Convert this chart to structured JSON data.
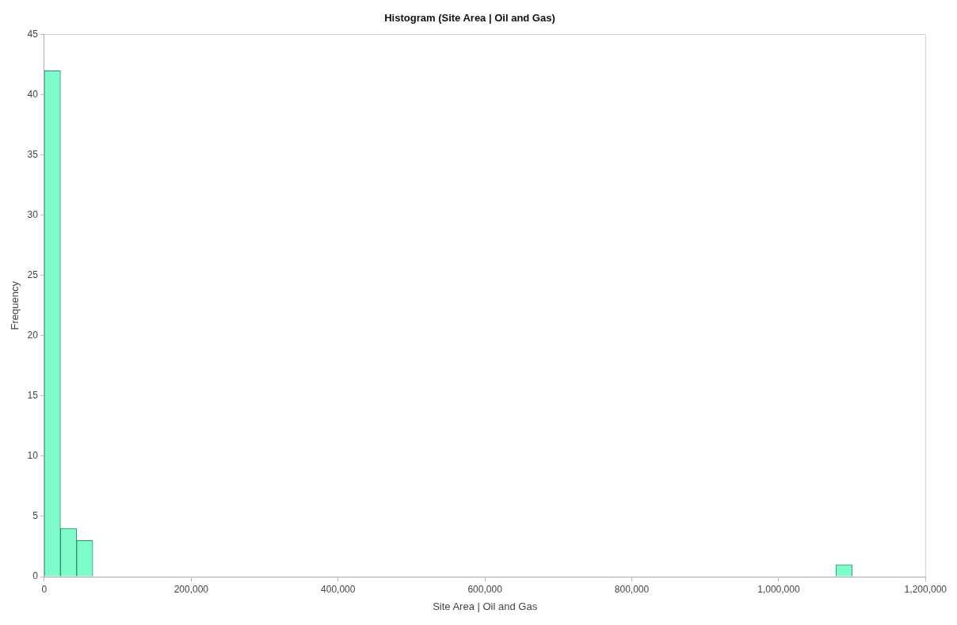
{
  "chart_data": {
    "type": "histogram",
    "title": "Histogram (Site Area | Oil and Gas)",
    "xlabel": "Site Area | Oil and Gas",
    "ylabel": "Frequency",
    "bins": [
      0,
      22000,
      44000,
      66000,
      88000,
      110000,
      132000,
      154000,
      176000,
      198000,
      220000,
      242000,
      264000,
      286000,
      308000,
      330000,
      352000,
      374000,
      396000,
      418000,
      440000,
      462000,
      484000,
      506000,
      528000,
      550000,
      572000,
      594000,
      616000,
      638000,
      660000,
      682000,
      704000,
      726000,
      748000,
      770000,
      792000,
      814000,
      836000,
      858000,
      880000,
      902000,
      924000,
      946000,
      968000,
      990000,
      1012000,
      1034000,
      1056000,
      1078000,
      1100000
    ],
    "values": [
      42,
      4,
      3,
      0,
      0,
      0,
      0,
      0,
      0,
      0,
      0,
      0,
      0,
      0,
      0,
      0,
      0,
      0,
      0,
      0,
      0,
      0,
      0,
      0,
      0,
      0,
      0,
      0,
      0,
      0,
      0,
      0,
      0,
      0,
      0,
      0,
      0,
      0,
      0,
      0,
      0,
      0,
      0,
      0,
      0,
      0,
      0,
      0,
      0,
      1
    ],
    "color": "#7dfbcb",
    "xlim": [
      0,
      1200000
    ],
    "xticks": [
      {
        "value": 0,
        "label": "0"
      },
      {
        "value": 200000,
        "label": "200,000"
      },
      {
        "value": 400000,
        "label": "400,000"
      },
      {
        "value": 600000,
        "label": "600,000"
      },
      {
        "value": 800000,
        "label": "800,000"
      },
      {
        "value": 1000000,
        "label": "1,000,000"
      },
      {
        "value": 1200000,
        "label": "1,200,000"
      }
    ],
    "ylim": [
      0,
      45
    ],
    "yticks": [
      0,
      5,
      10,
      15,
      20,
      25,
      30,
      35,
      40,
      45
    ],
    "grid": false,
    "legend": false
  }
}
